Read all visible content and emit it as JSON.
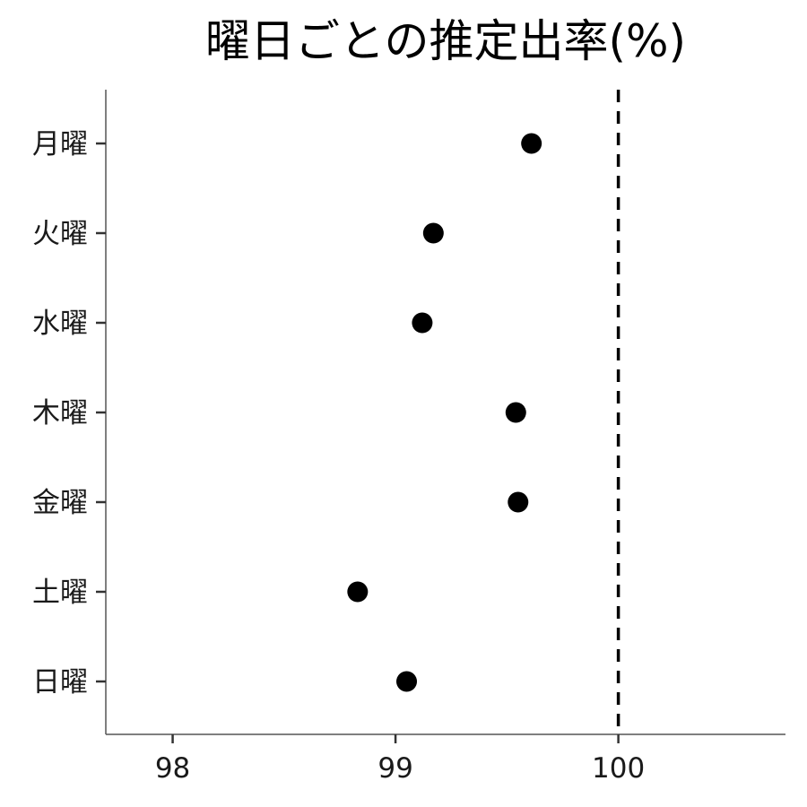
{
  "chart_data": {
    "type": "scatter",
    "title": "曜日ごとの推定出率(%)",
    "xlabel": "",
    "ylabel": "",
    "xlim": [
      97.7,
      100.75
    ],
    "x_ticks": [
      98,
      99,
      100
    ],
    "x_tick_labels": [
      "98",
      "99",
      "100"
    ],
    "categories": [
      "月曜",
      "火曜",
      "水曜",
      "木曜",
      "金曜",
      "土曜",
      "日曜"
    ],
    "values": [
      99.61,
      99.17,
      99.12,
      99.54,
      99.55,
      98.83,
      99.05
    ],
    "reference_line": {
      "x": 100,
      "style": "dashed"
    },
    "grid": false,
    "legend": "none",
    "point_color": "#000000"
  }
}
